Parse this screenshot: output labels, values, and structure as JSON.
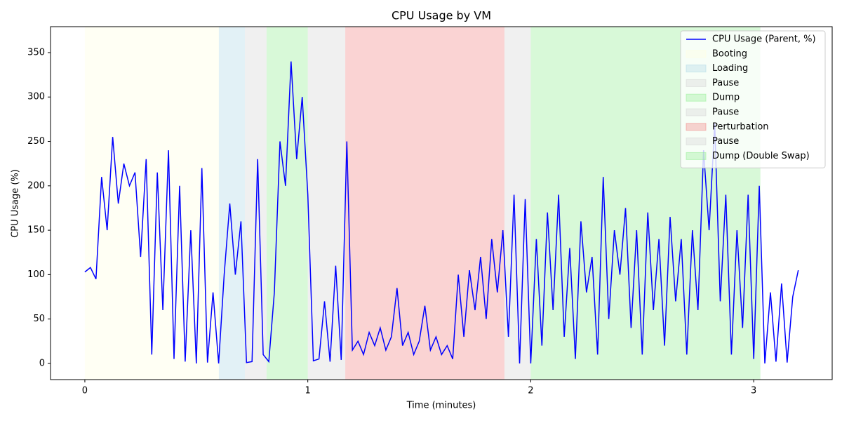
{
  "chart_data": {
    "type": "line",
    "title": "CPU Usage by VM",
    "x_label": "Time (minutes)",
    "y_label": "CPU Usage (%)",
    "xlim": [
      -0.154,
      3.352
    ],
    "ylim": [
      -18.2,
      379.2
    ],
    "xticks": [
      0,
      1,
      2,
      3
    ],
    "yticks": [
      0,
      50,
      100,
      150,
      200,
      250,
      300,
      350
    ],
    "legend": "upper right",
    "x": [
      0,
      0.025,
      0.05,
      0.075,
      0.1,
      0.125,
      0.15,
      0.175,
      0.2,
      0.225,
      0.25,
      0.275,
      0.3,
      0.325,
      0.35,
      0.375,
      0.4,
      0.425,
      0.45,
      0.475,
      0.5,
      0.525,
      0.55,
      0.575,
      0.6,
      0.625,
      0.65,
      0.675,
      0.7,
      0.725,
      0.75,
      0.775,
      0.8,
      0.825,
      0.85,
      0.875,
      0.9,
      0.925,
      0.95,
      0.975,
      1.0,
      1.025,
      1.05,
      1.075,
      1.1,
      1.125,
      1.15,
      1.175,
      1.2,
      1.225,
      1.25,
      1.275,
      1.3,
      1.325,
      1.35,
      1.375,
      1.4,
      1.425,
      1.45,
      1.475,
      1.5,
      1.525,
      1.55,
      1.575,
      1.6,
      1.625,
      1.65,
      1.675,
      1.7,
      1.725,
      1.75,
      1.775,
      1.8,
      1.825,
      1.85,
      1.875,
      1.9,
      1.925,
      1.95,
      1.975,
      2.0,
      2.025,
      2.05,
      2.075,
      2.1,
      2.125,
      2.15,
      2.175,
      2.2,
      2.225,
      2.25,
      2.275,
      2.3,
      2.325,
      2.35,
      2.375,
      2.4,
      2.425,
      2.45,
      2.475,
      2.5,
      2.525,
      2.55,
      2.575,
      2.6,
      2.625,
      2.65,
      2.675,
      2.7,
      2.725,
      2.75,
      2.775,
      2.8,
      2.825,
      2.85,
      2.875,
      2.9,
      2.925,
      2.95,
      2.975,
      3.0,
      3.025,
      3.05,
      3.075,
      3.1,
      3.125,
      3.15,
      3.175,
      3.2
    ],
    "series": [
      {
        "name": "CPU Usage (Parent, %)",
        "color": "#0000ff",
        "values": [
          103,
          108,
          95,
          210,
          150,
          255,
          180,
          225,
          200,
          215,
          120,
          230,
          10,
          215,
          60,
          240,
          5,
          200,
          2,
          150,
          0,
          220,
          1,
          80,
          0,
          100,
          180,
          100,
          160,
          1,
          2,
          230,
          10,
          2,
          80,
          250,
          200,
          340,
          230,
          300,
          190,
          3,
          5,
          70,
          2,
          110,
          4,
          250,
          15,
          25,
          10,
          35,
          20,
          40,
          15,
          30,
          85,
          20,
          35,
          10,
          25,
          65,
          15,
          30,
          10,
          20,
          5,
          100,
          30,
          105,
          60,
          120,
          50,
          140,
          80,
          150,
          30,
          190,
          0,
          185,
          0,
          140,
          20,
          170,
          60,
          190,
          30,
          130,
          5,
          160,
          80,
          120,
          10,
          210,
          50,
          150,
          100,
          175,
          40,
          150,
          10,
          170,
          60,
          140,
          20,
          165,
          70,
          140,
          10,
          150,
          60,
          240,
          150,
          270,
          70,
          190,
          10,
          150,
          40,
          190,
          5,
          200,
          0,
          80,
          2,
          90,
          1,
          75,
          105
        ]
      }
    ],
    "spans": [
      {
        "name": "Booting",
        "start": 0,
        "end": 0.601,
        "color": "#ffffe0"
      },
      {
        "name": "Loading",
        "start": 0.601,
        "end": 0.718,
        "color": "#add8e6"
      },
      {
        "name": "Pause",
        "start": 0.718,
        "end": 0.815,
        "color": "#d3d3d3"
      },
      {
        "name": "Dump",
        "start": 0.815,
        "end": 1.0,
        "color": "#90ee90"
      },
      {
        "name": "Pause",
        "start": 1.0,
        "end": 1.168,
        "color": "#d3d3d3"
      },
      {
        "name": "Perturbation",
        "start": 1.168,
        "end": 1.882,
        "color": "#f08080"
      },
      {
        "name": "Pause",
        "start": 1.882,
        "end": 2.0,
        "color": "#d3d3d3"
      },
      {
        "name": "Dump (Double Swap)",
        "start": 2.0,
        "end": 3.03,
        "color": "#90ee90"
      }
    ]
  }
}
